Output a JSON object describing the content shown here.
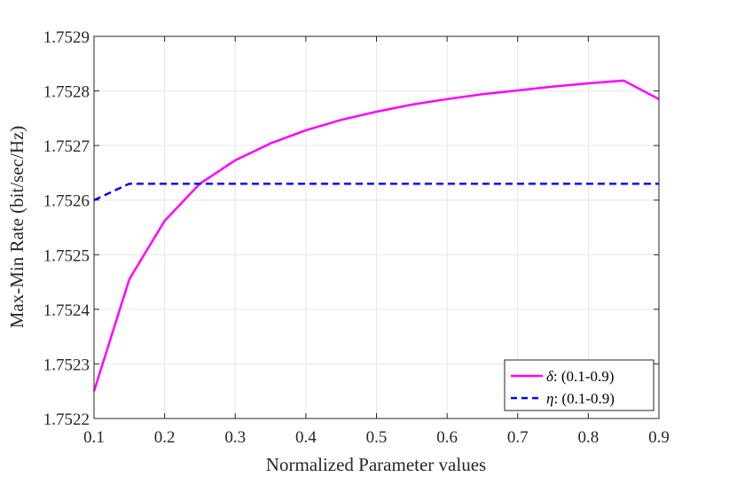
{
  "chart_data": {
    "type": "line",
    "title": "",
    "xlabel": "Normalized Parameter values",
    "ylabel": "Max-Min Rate (bit/sec/Hz)",
    "xlim": [
      0.1,
      0.9
    ],
    "ylim": [
      1.7522,
      1.7529
    ],
    "x_ticks": [
      0.1,
      0.2,
      0.3,
      0.4,
      0.5,
      0.6,
      0.7,
      0.8,
      0.9
    ],
    "x_tick_labels": [
      "0.1",
      "0.2",
      "0.3",
      "0.4",
      "0.5",
      "0.6",
      "0.7",
      "0.8",
      "0.9"
    ],
    "y_ticks": [
      1.7522,
      1.7523,
      1.7524,
      1.7525,
      1.7526,
      1.7527,
      1.7528,
      1.7529
    ],
    "y_tick_labels": [
      "1.7522",
      "1.7523",
      "1.7524",
      "1.7525",
      "1.7526",
      "1.7527",
      "1.7528",
      "1.7529"
    ],
    "grid": true,
    "legend_position": "bottom-right",
    "x": [
      0.1,
      0.15,
      0.2,
      0.25,
      0.3,
      0.35,
      0.4,
      0.45,
      0.5,
      0.55,
      0.6,
      0.65,
      0.7,
      0.75,
      0.8,
      0.85,
      0.9
    ],
    "series": [
      {
        "name": "δ: (0.1-0.9)",
        "symbol": "δ",
        "range_text": ": (0.1-0.9)",
        "color": "#ff00ff",
        "style": "solid",
        "values": [
          1.75225,
          1.752455,
          1.752562,
          1.75263,
          1.752673,
          1.752704,
          1.752728,
          1.752747,
          1.752762,
          1.752775,
          1.752785,
          1.752794,
          1.752801,
          1.752808,
          1.752814,
          1.752819,
          1.752785
        ]
      },
      {
        "name": "η: (0.1-0.9)",
        "symbol": "η",
        "range_text": ": (0.1-0.9)",
        "color": "#0000ff",
        "style": "dashed",
        "values": [
          1.7526,
          1.75263,
          1.75263,
          1.75263,
          1.75263,
          1.75263,
          1.75263,
          1.75263,
          1.75263,
          1.75263,
          1.75263,
          1.75263,
          1.75263,
          1.75263,
          1.75263,
          1.75263,
          1.75263
        ]
      }
    ]
  }
}
